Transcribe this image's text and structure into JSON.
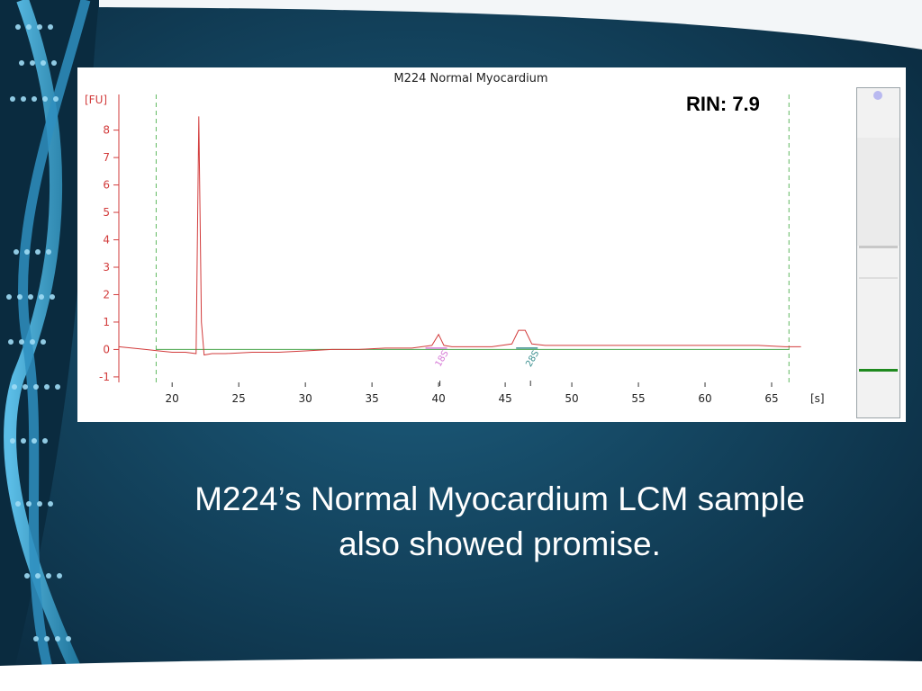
{
  "slide": {
    "caption_line1": "M224’s Normal Myocardium LCM sample",
    "caption_line2": "also showed promise."
  },
  "rin_label": "RIN: 7.9",
  "colors": {
    "trace": "#d23b3b",
    "baseline": "#49a44b",
    "marker_line": "#5fb85f",
    "axis": "#d23b3b",
    "peak_18s": "#d67ad6",
    "peak_28s": "#3b8f8f",
    "gel_band": "#1f8a1f"
  },
  "chart_data": {
    "type": "line",
    "title": "M224 Normal Myocardium",
    "xlabel": "[s]",
    "ylabel": "[FU]",
    "xlim": [
      16,
      67.5
    ],
    "ylim": [
      -1.2,
      9.3
    ],
    "xticks": [
      20,
      25,
      30,
      35,
      40,
      45,
      50,
      55,
      60,
      65
    ],
    "yticks": [
      -1,
      0,
      1,
      2,
      3,
      4,
      5,
      6,
      7,
      8
    ],
    "grid": false,
    "vertical_markers": [
      18.8,
      66.3
    ],
    "series": [
      {
        "x": [
          16.0,
          17.0,
          18.0,
          19.0,
          20.0,
          21.0,
          21.8,
          22.0,
          22.2,
          22.4,
          23.0,
          24.0,
          26.0,
          28.0,
          30.0,
          32.0,
          34.0,
          36.0,
          38.0,
          39.5,
          40.0,
          40.4,
          41.0,
          44.0,
          45.5,
          46.0,
          46.5,
          47.0,
          48.0,
          50.0,
          52.0,
          54.0,
          56.0,
          58.0,
          60.0,
          62.0,
          64.0,
          66.0,
          67.2
        ],
        "y": [
          0.1,
          0.05,
          0.0,
          -0.05,
          -0.1,
          -0.1,
          -0.15,
          8.5,
          1.0,
          -0.2,
          -0.15,
          -0.15,
          -0.1,
          -0.1,
          -0.05,
          0.0,
          0.0,
          0.05,
          0.05,
          0.15,
          0.55,
          0.15,
          0.1,
          0.1,
          0.2,
          0.7,
          0.7,
          0.2,
          0.15,
          0.15,
          0.15,
          0.15,
          0.15,
          0.15,
          0.15,
          0.15,
          0.15,
          0.1,
          0.1
        ]
      }
    ],
    "annotations": [
      {
        "label": "18S",
        "x": 40.1
      },
      {
        "label": "28S",
        "x": 46.9
      }
    ]
  }
}
